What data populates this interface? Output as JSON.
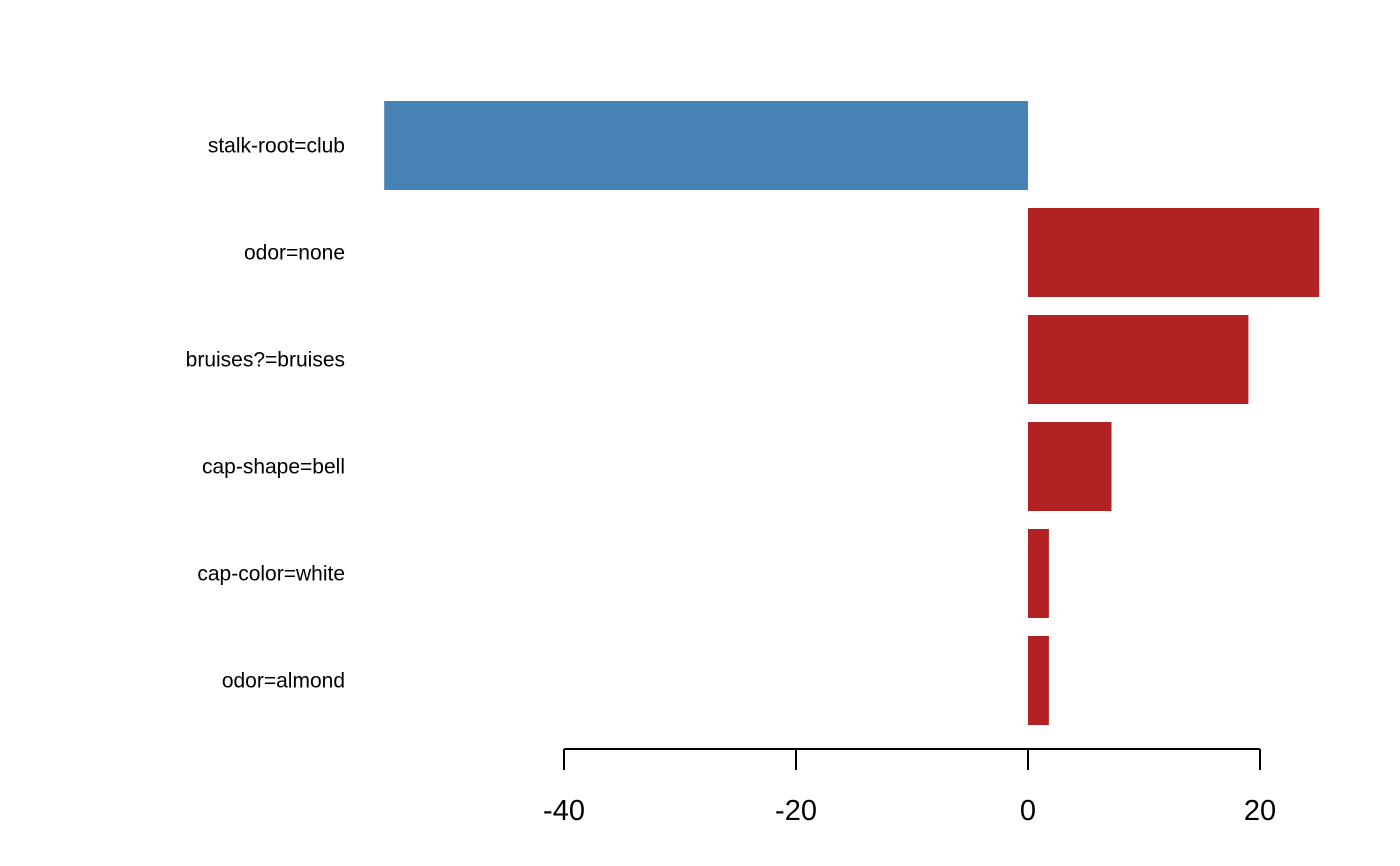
{
  "chart_data": {
    "type": "bar",
    "orientation": "horizontal",
    "categories": [
      "stalk-root=club",
      "odor=none",
      "bruises?=bruises",
      "cap-shape=bell",
      "cap-color=white",
      "odor=almond"
    ],
    "values": [
      -55.5,
      25.1,
      19.0,
      7.2,
      1.8,
      1.8
    ],
    "xticks": [
      -40,
      -20,
      0,
      20
    ],
    "xtick_labels": [
      "-40",
      "-20",
      "0",
      "20"
    ],
    "xlim": [
      -56,
      26
    ],
    "title": "",
    "xlabel": "",
    "ylabel": "",
    "grid": false,
    "colors": {
      "positive": "#b22222",
      "negative": "#4682b4"
    }
  }
}
